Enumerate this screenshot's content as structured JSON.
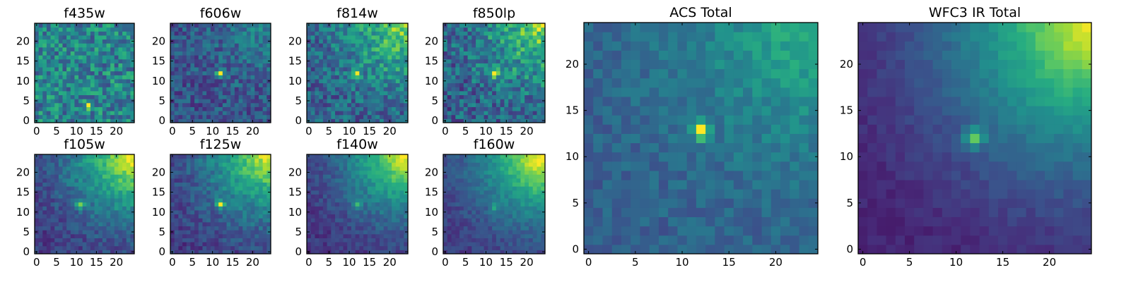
{
  "chart_data": [
    {
      "type": "heatmap",
      "title": "f435w",
      "xticks": [
        0,
        5,
        10,
        15,
        20
      ],
      "yticks": [
        0,
        5,
        10,
        15,
        20
      ],
      "xlim": [
        0,
        25
      ],
      "ylim": [
        0,
        25
      ],
      "grid": false,
      "colormap": "viridis",
      "description": "noisy uniform field; bright pixels near (13,4),(12,5),(6,6)",
      "peak_pixel": [
        13,
        4
      ],
      "peak_level": 0.95,
      "background_level": 0.45,
      "gradient_level": 0.0,
      "noise": 0.22
    },
    {
      "type": "heatmap",
      "title": "f606w",
      "xticks": [
        0,
        5,
        10,
        15,
        20
      ],
      "yticks": [
        0,
        5,
        10,
        15,
        20
      ],
      "xlim": [
        0,
        25
      ],
      "ylim": [
        0,
        25
      ],
      "grid": false,
      "colormap": "viridis",
      "peak_pixel": [
        12,
        12
      ],
      "peak_level": 1.0,
      "background_level": 0.25,
      "gradient_level": 0.2,
      "noise": 0.15
    },
    {
      "type": "heatmap",
      "title": "f814w",
      "xticks": [
        0,
        5,
        10,
        15,
        20
      ],
      "yticks": [
        0,
        5,
        10,
        15,
        20
      ],
      "xlim": [
        0,
        25
      ],
      "ylim": [
        0,
        25
      ],
      "grid": false,
      "colormap": "viridis",
      "peak_pixel": [
        12,
        12
      ],
      "peak_level": 0.85,
      "background_level": 0.3,
      "gradient_level": 0.55,
      "noise": 0.18
    },
    {
      "type": "heatmap",
      "title": "f850lp",
      "xticks": [
        0,
        5,
        10,
        15,
        20
      ],
      "yticks": [
        0,
        5,
        10,
        15,
        20
      ],
      "xlim": [
        0,
        25
      ],
      "ylim": [
        0,
        25
      ],
      "grid": false,
      "colormap": "viridis",
      "peak_pixel": [
        12,
        12
      ],
      "peak_level": 0.85,
      "background_level": 0.3,
      "gradient_level": 0.55,
      "noise": 0.2
    },
    {
      "type": "heatmap",
      "title": "f105w",
      "xticks": [
        0,
        5,
        10,
        15,
        20
      ],
      "yticks": [
        0,
        5,
        10,
        15,
        20
      ],
      "xlim": [
        0,
        25
      ],
      "ylim": [
        0,
        25
      ],
      "grid": false,
      "colormap": "viridis",
      "peak_pixel": [
        11,
        12
      ],
      "peak_level": 0.7,
      "background_level": 0.18,
      "gradient_level": 0.85,
      "noise": 0.1
    },
    {
      "type": "heatmap",
      "title": "f125w",
      "xticks": [
        0,
        5,
        10,
        15,
        20
      ],
      "yticks": [
        0,
        5,
        10,
        15,
        20
      ],
      "xlim": [
        0,
        25
      ],
      "ylim": [
        0,
        25
      ],
      "grid": false,
      "colormap": "viridis",
      "peak_pixel": [
        12,
        12
      ],
      "peak_level": 0.8,
      "background_level": 0.18,
      "gradient_level": 0.8,
      "noise": 0.1
    },
    {
      "type": "heatmap",
      "title": "f140w",
      "xticks": [
        0,
        5,
        10,
        15,
        20
      ],
      "yticks": [
        0,
        5,
        10,
        15,
        20
      ],
      "xlim": [
        0,
        25
      ],
      "ylim": [
        0,
        25
      ],
      "grid": false,
      "colormap": "viridis",
      "peak_pixel": [
        12,
        12
      ],
      "peak_level": 0.45,
      "background_level": 0.15,
      "gradient_level": 0.85,
      "noise": 0.08
    },
    {
      "type": "heatmap",
      "title": "f160w",
      "xticks": [
        0,
        5,
        10,
        15,
        20
      ],
      "yticks": [
        0,
        5,
        10,
        15,
        20
      ],
      "xlim": [
        0,
        25
      ],
      "ylim": [
        0,
        25
      ],
      "grid": false,
      "colormap": "viridis",
      "peak_pixel": [
        12,
        11
      ],
      "peak_level": 0.5,
      "background_level": 0.18,
      "gradient_level": 0.9,
      "noise": 0.07
    },
    {
      "type": "heatmap",
      "title": "ACS Total",
      "xticks": [
        0,
        5,
        10,
        15,
        20
      ],
      "yticks": [
        0,
        5,
        10,
        15,
        20
      ],
      "xlim": [
        0,
        25
      ],
      "ylim": [
        0,
        25
      ],
      "grid": false,
      "colormap": "viridis",
      "peak_pixel": [
        12,
        13
      ],
      "peak_level": 1.0,
      "background_level": 0.3,
      "gradient_level": 0.35,
      "noise": 0.08
    },
    {
      "type": "heatmap",
      "title": "WFC3 IR Total",
      "xticks": [
        0,
        5,
        10,
        15,
        20
      ],
      "yticks": [
        0,
        5,
        10,
        15,
        20
      ],
      "xlim": [
        0,
        25
      ],
      "ylim": [
        0,
        25
      ],
      "grid": false,
      "colormap": "viridis",
      "peak_pixel": [
        12,
        12
      ],
      "peak_level": 0.6,
      "background_level": 0.1,
      "gradient_level": 0.9,
      "noise": 0.04
    }
  ],
  "colors": {
    "axis": "#000000",
    "background": "#ffffff"
  }
}
